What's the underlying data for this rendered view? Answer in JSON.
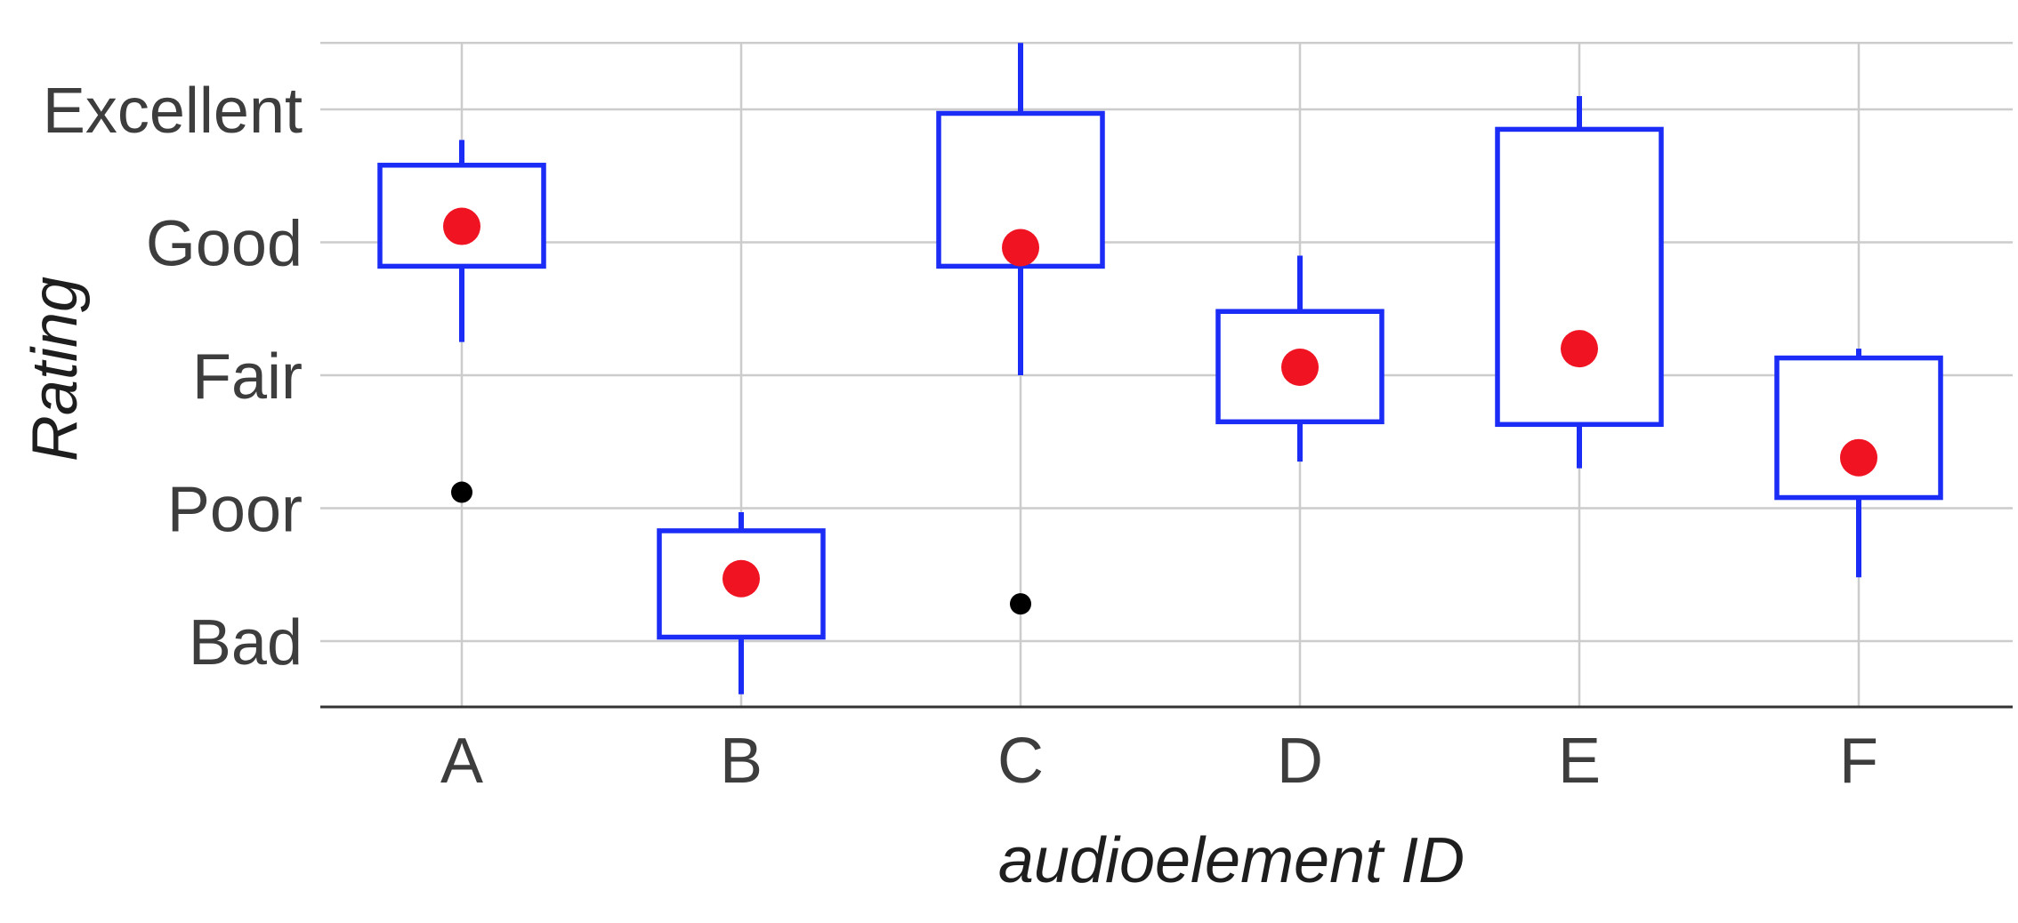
{
  "chart_data": {
    "type": "box",
    "xlabel": "audioelement ID",
    "ylabel": "Rating",
    "categories": [
      "A",
      "B",
      "C",
      "D",
      "E",
      "F"
    ],
    "y_tick_labels": [
      "Bad",
      "Poor",
      "Fair",
      "Good",
      "Excellent"
    ],
    "y_tick_values": [
      1,
      2,
      3,
      4,
      5
    ],
    "ylim": [
      0.5,
      5.5
    ],
    "grid": true,
    "boxes": [
      {
        "category": "A",
        "whisker_low": 3.25,
        "q1": 3.82,
        "q3": 4.58,
        "whisker_high": 4.77,
        "mean": 4.12,
        "outliers": [
          2.12
        ]
      },
      {
        "category": "B",
        "whisker_low": 0.6,
        "q1": 1.03,
        "q3": 1.83,
        "whisker_high": 1.97,
        "mean": 1.47,
        "outliers": []
      },
      {
        "category": "C",
        "whisker_low": 3.0,
        "q1": 3.82,
        "q3": 4.97,
        "whisker_high": 5.5,
        "mean": 3.96,
        "outliers": [
          1.28
        ]
      },
      {
        "category": "D",
        "whisker_low": 2.35,
        "q1": 2.65,
        "q3": 3.48,
        "whisker_high": 3.9,
        "mean": 3.06,
        "outliers": []
      },
      {
        "category": "E",
        "whisker_low": 2.3,
        "q1": 2.63,
        "q3": 4.85,
        "whisker_high": 5.1,
        "mean": 3.2,
        "outliers": []
      },
      {
        "category": "F",
        "whisker_low": 1.48,
        "q1": 2.08,
        "q3": 3.13,
        "whisker_high": 3.2,
        "mean": 2.38,
        "outliers": []
      }
    ],
    "colors": {
      "box": "#1a2cf5",
      "mean": "#f01423",
      "outlier": "#000000",
      "grid": "#cccccc",
      "axis": "#333333",
      "tick_text": "#3d3d3d",
      "title_text": "#1e1e1e"
    }
  }
}
